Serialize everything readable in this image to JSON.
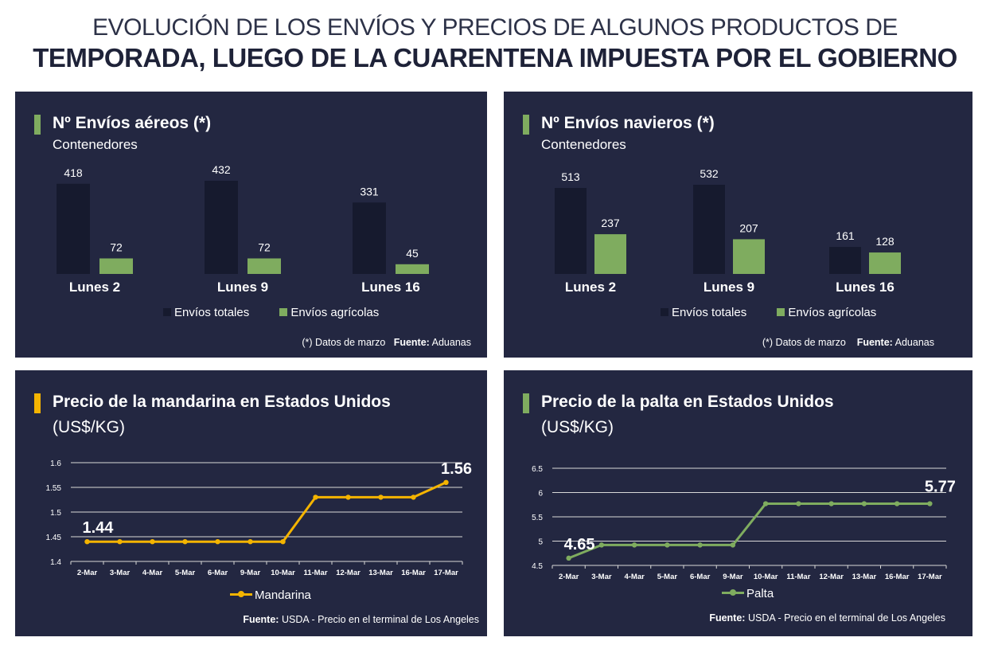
{
  "header": {
    "line1": "EVOLUCIÓN DE LOS ENVÍOS Y PRECIOS DE ALGUNOS PRODUCTOS DE",
    "line2": "TEMPORADA, LUEGO DE LA CUARENTENA IMPUESTA POR EL GOBIERNO"
  },
  "colors": {
    "panel_bg": "#232741",
    "total_bar": "#161a2e",
    "agri_bar": "#7fac5f",
    "mandarina_line": "#f4b400",
    "palta_line": "#7fac5f",
    "grid": "#d8d8d8"
  },
  "panels": {
    "air": {
      "title": "Nº Envíos aéreos (*)",
      "subtitle": "Contenedores",
      "legend_total": "Envíos totales",
      "legend_agri": "Envíos agrícolas",
      "note": "(*) Datos de marzo",
      "source_label": "Fuente:",
      "source_value": "Aduanas"
    },
    "sea": {
      "title": "Nº Envíos navieros (*)",
      "subtitle": "Contenedores",
      "legend_total": "Envíos totales",
      "legend_agri": "Envíos agrícolas",
      "note": "(*) Datos de marzo",
      "source_label": "Fuente:",
      "source_value": "Aduanas"
    },
    "mandarina": {
      "title": "Precio de la mandarina en Estados Unidos",
      "subtitle": "(US$/KG)",
      "legend": "Mandarina",
      "source_label": "Fuente:",
      "source_value": "USDA - Precio en el terminal de Los Angeles"
    },
    "palta": {
      "title": "Precio de la palta en Estados Unidos",
      "subtitle": "(US$/KG)",
      "legend": "Palta",
      "source_label": "Fuente:",
      "source_value": "USDA - Precio en el terminal de Los Angeles"
    }
  },
  "chart_data": [
    {
      "type": "bar",
      "categories": [
        "Lunes 2",
        "Lunes 9",
        "Lunes 16"
      ],
      "series": [
        {
          "name": "Envíos totales",
          "values": [
            418,
            432,
            331
          ]
        },
        {
          "name": "Envíos agrícolas",
          "values": [
            72,
            72,
            45
          ]
        }
      ],
      "title": "Nº Envíos aéreos (*)",
      "ylabel": "Contenedores",
      "legend": "bottom"
    },
    {
      "type": "bar",
      "categories": [
        "Lunes 2",
        "Lunes 9",
        "Lunes 16"
      ],
      "series": [
        {
          "name": "Envíos totales",
          "values": [
            513,
            532,
            161
          ]
        },
        {
          "name": "Envíos agrícolas",
          "values": [
            237,
            207,
            128
          ]
        }
      ],
      "title": "Nº Envíos navieros (*)",
      "ylabel": "Contenedores",
      "legend": "bottom"
    },
    {
      "type": "line",
      "x": [
        "2-Mar",
        "3-Mar",
        "4-Mar",
        "5-Mar",
        "6-Mar",
        "9-Mar",
        "10-Mar",
        "11-Mar",
        "12-Mar",
        "13-Mar",
        "16-Mar",
        "17-Mar"
      ],
      "series": [
        {
          "name": "Mandarina",
          "values": [
            1.44,
            1.44,
            1.44,
            1.44,
            1.44,
            1.44,
            1.44,
            1.53,
            1.53,
            1.53,
            1.53,
            1.56
          ]
        }
      ],
      "yticks": [
        "1.4",
        "1.45",
        "1.5",
        "1.55",
        "1.6"
      ],
      "ylim": [
        1.4,
        1.6
      ],
      "annotations": [
        "1.44",
        "1.56"
      ],
      "title": "Precio de la mandarina en Estados Unidos",
      "ylabel": "(US$/KG)",
      "grid": true,
      "legend": "bottom"
    },
    {
      "type": "line",
      "x": [
        "2-Mar",
        "3-Mar",
        "4-Mar",
        "5-Mar",
        "6-Mar",
        "9-Mar",
        "10-Mar",
        "11-Mar",
        "12-Mar",
        "13-Mar",
        "16-Mar",
        "17-Mar"
      ],
      "series": [
        {
          "name": "Palta",
          "values": [
            4.65,
            4.92,
            4.92,
            4.92,
            4.92,
            4.92,
            5.77,
            5.77,
            5.77,
            5.77,
            5.77,
            5.77
          ]
        }
      ],
      "yticks": [
        "4.5",
        "5",
        "5.5",
        "6",
        "6.5"
      ],
      "ylim": [
        4.5,
        6.5
      ],
      "annotations": [
        "4.65",
        "5.77"
      ],
      "title": "Precio de la palta en Estados Unidos",
      "ylabel": "(US$/KG)",
      "grid": true,
      "legend": "bottom"
    }
  ]
}
